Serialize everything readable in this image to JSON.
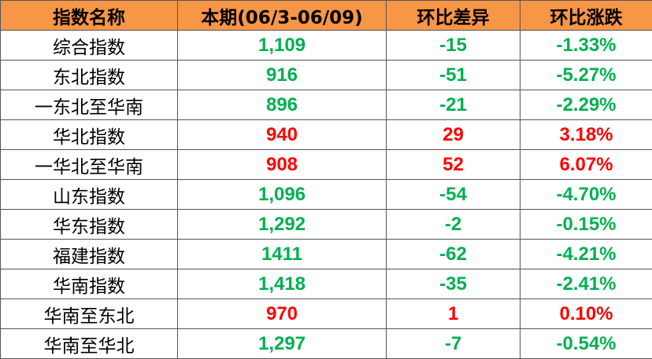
{
  "colors": {
    "header_bg": "#F79646",
    "down": "#00B050",
    "up": "#FF0000"
  },
  "table": {
    "headers": [
      "指数名称",
      "本期(06/3-06/09)",
      "环比差异",
      "环比涨跌"
    ],
    "rows": [
      {
        "name": "综合指数",
        "value": "1,109",
        "diff": "-15",
        "pct": "-1.33%",
        "trend": "down"
      },
      {
        "name": "东北指数",
        "value": "916",
        "diff": "-51",
        "pct": "-5.27%",
        "trend": "down"
      },
      {
        "name": "一东北至华南",
        "value": "896",
        "diff": "-21",
        "pct": "-2.29%",
        "trend": "down"
      },
      {
        "name": "华北指数",
        "value": "940",
        "diff": "29",
        "pct": "3.18%",
        "trend": "up"
      },
      {
        "name": "一华北至华南",
        "value": "908",
        "diff": "52",
        "pct": "6.07%",
        "trend": "up"
      },
      {
        "name": "山东指数",
        "value": "1,096",
        "diff": "-54",
        "pct": "-4.70%",
        "trend": "down"
      },
      {
        "name": "华东指数",
        "value": "1,292",
        "diff": "-2",
        "pct": "-0.15%",
        "trend": "down"
      },
      {
        "name": "福建指数",
        "value": "1411",
        "diff": "-62",
        "pct": "-4.21%",
        "trend": "down"
      },
      {
        "name": "华南指数",
        "value": "1,418",
        "diff": "-35",
        "pct": "-2.41%",
        "trend": "down"
      },
      {
        "name": "华南至东北",
        "value": "970",
        "diff": "1",
        "pct": "0.10%",
        "trend": "up"
      },
      {
        "name": "华南至华北",
        "value": "1,297",
        "diff": "-7",
        "pct": "-0.54%",
        "trend": "down"
      }
    ]
  }
}
